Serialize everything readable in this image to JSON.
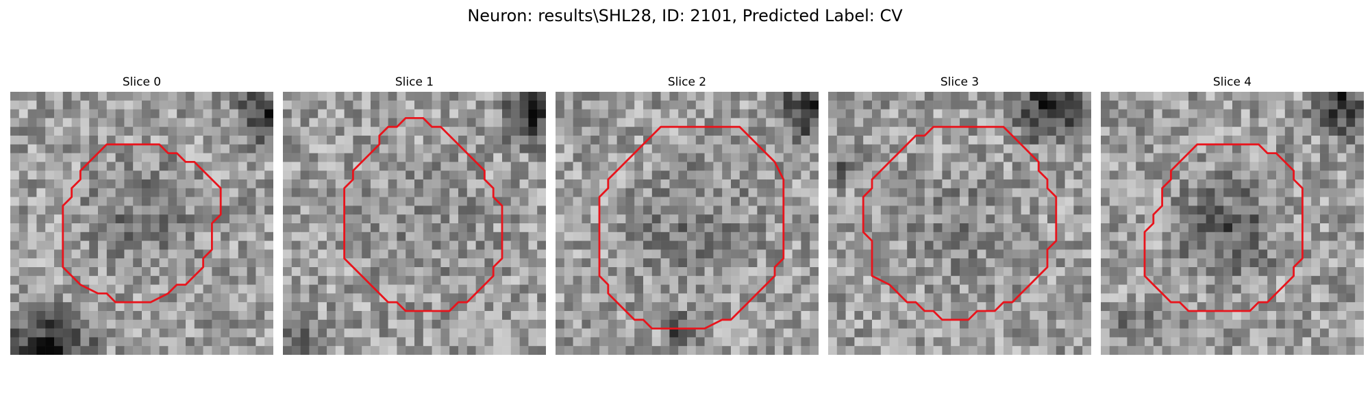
{
  "figure": {
    "title": "Neuron: results\\SHL28, ID: 2101, Predicted Label: CV",
    "contour_color": "#e8141c",
    "colormap": "gray"
  },
  "panels": [
    {
      "title": "Slice 0",
      "seed": 11,
      "dark_region": "bottom-left, top-right",
      "contour_icon": "neuron-outline"
    },
    {
      "title": "Slice 1",
      "seed": 23,
      "dark_region": "top-right",
      "contour_icon": "neuron-outline"
    },
    {
      "title": "Slice 2",
      "seed": 37,
      "dark_region": "top-right, bottom-center",
      "contour_icon": "neuron-outline"
    },
    {
      "title": "Slice 3",
      "seed": 53,
      "dark_region": "top-right",
      "contour_icon": "neuron-outline"
    },
    {
      "title": "Slice 4",
      "seed": 71,
      "dark_region": "top-right, left",
      "contour_icon": "neuron-outline"
    }
  ]
}
